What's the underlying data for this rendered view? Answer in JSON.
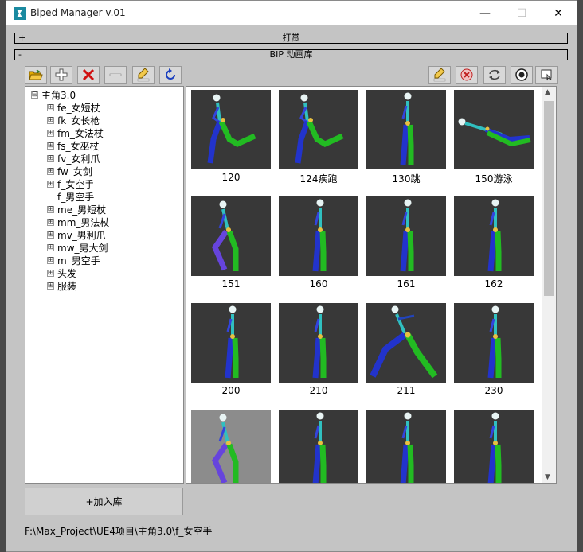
{
  "window": {
    "title": "Biped Manager v.01",
    "minimize_glyph": "—",
    "maximize_glyph": "☐",
    "close_glyph": "✕"
  },
  "rollouts": [
    {
      "sign": "+",
      "label": "打赏"
    },
    {
      "sign": "-",
      "label": "BIP 动画库"
    }
  ],
  "toolbar_left": [
    "open-folder-icon",
    "add-icon",
    "delete-icon",
    "minus-icon",
    "rename-icon",
    "refresh-icon"
  ],
  "toolbar_right": [
    "rename-icon",
    "remove-icon",
    "sync-icon",
    "settings-icon",
    "capture-icon"
  ],
  "tree": {
    "root": {
      "expander": "⊟",
      "label": "主角3.0"
    },
    "items": [
      {
        "expander": "⊞",
        "label": "fe_女短杖"
      },
      {
        "expander": "⊞",
        "label": "fk_女长枪"
      },
      {
        "expander": "⊞",
        "label": "fm_女法杖"
      },
      {
        "expander": "⊞",
        "label": "fs_女巫杖"
      },
      {
        "expander": "⊞",
        "label": "fv_女利爪"
      },
      {
        "expander": "⊞",
        "label": "fw_女剑"
      },
      {
        "expander": "⊞",
        "label": "f_女空手"
      },
      {
        "expander": "",
        "label": "f_男空手"
      },
      {
        "expander": "⊞",
        "label": "me_男短杖"
      },
      {
        "expander": "⊞",
        "label": "mm_男法杖"
      },
      {
        "expander": "⊞",
        "label": "mv_男利爪"
      },
      {
        "expander": "⊞",
        "label": "mw_男大剑"
      },
      {
        "expander": "⊞",
        "label": "m_男空手"
      },
      {
        "expander": "⊞",
        "label": "头发"
      },
      {
        "expander": "⊞",
        "label": "服装"
      }
    ]
  },
  "gallery": {
    "items": [
      {
        "caption": "120",
        "pose": "run"
      },
      {
        "caption": "124疾跑",
        "pose": "run"
      },
      {
        "caption": "130跳",
        "pose": "stand"
      },
      {
        "caption": "150游泳",
        "pose": "swim"
      },
      {
        "caption": "151",
        "pose": "walk"
      },
      {
        "caption": "160",
        "pose": "stand"
      },
      {
        "caption": "161",
        "pose": "stand"
      },
      {
        "caption": "162",
        "pose": "stand"
      },
      {
        "caption": "200",
        "pose": "stand"
      },
      {
        "caption": "210",
        "pose": "stand"
      },
      {
        "caption": "211",
        "pose": "lunge"
      },
      {
        "caption": "230",
        "pose": "stand"
      },
      {
        "caption": "",
        "pose": "walk",
        "selected": true
      },
      {
        "caption": "",
        "pose": "stand"
      },
      {
        "caption": "",
        "pose": "stand"
      },
      {
        "caption": "",
        "pose": "stand"
      }
    ],
    "scroll_up": "▲",
    "scroll_down": "▼"
  },
  "add_button_label": "+加入库",
  "status_path": "F:\\Max_Project\\UE4项目\\主角3.0\\f_女空手"
}
